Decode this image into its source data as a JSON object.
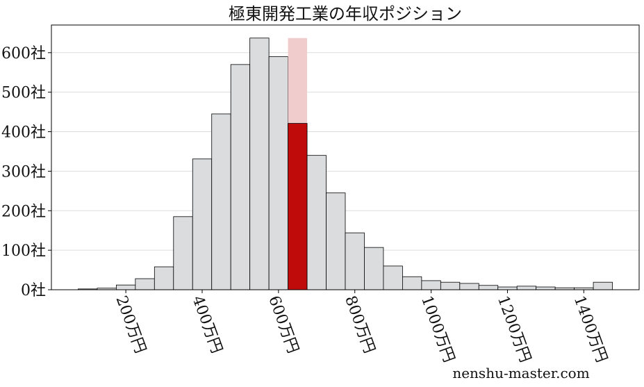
{
  "chart_data": {
    "type": "histogram",
    "title": "極東開発工業の年収ポジション",
    "bins": [
      75,
      125,
      175,
      225,
      275,
      325,
      375,
      425,
      475,
      525,
      575,
      625,
      675,
      725,
      775,
      825,
      875,
      925,
      975,
      1025,
      1075,
      1125,
      1175,
      1225,
      1275,
      1325,
      1375,
      1425,
      1475
    ],
    "values": [
      2,
      4,
      12,
      28,
      58,
      185,
      331,
      445,
      570,
      637,
      590,
      421,
      340,
      245,
      144,
      107,
      60,
      33,
      23,
      19,
      16,
      11,
      7,
      9,
      7,
      5,
      5,
      19
    ],
    "color": "#dadcde",
    "edge_color": "#000000",
    "highlight": {
      "index": 11,
      "color": "#c00b0b",
      "band_color": "#f0cccc"
    },
    "xlim": [
      5,
      1545
    ],
    "xticks": [
      {
        "value": 200,
        "label": "200万円"
      },
      {
        "value": 400,
        "label": "400万円"
      },
      {
        "value": 600,
        "label": "600万円"
      },
      {
        "value": 800,
        "label": "800万円"
      },
      {
        "value": 1000,
        "label": "1000万円"
      },
      {
        "value": 1200,
        "label": "1200万円"
      },
      {
        "value": 1400,
        "label": "1400万円"
      }
    ],
    "ylim": [
      0,
      670
    ],
    "yticks": [
      {
        "value": 0,
        "label": "0社"
      },
      {
        "value": 100,
        "label": "100社"
      },
      {
        "value": 200,
        "label": "200社"
      },
      {
        "value": 300,
        "label": "300社"
      },
      {
        "value": 400,
        "label": "400社"
      },
      {
        "value": 500,
        "label": "500社"
      },
      {
        "value": 600,
        "label": "600社"
      }
    ],
    "grid": true,
    "watermark": "nenshu-master.com"
  }
}
